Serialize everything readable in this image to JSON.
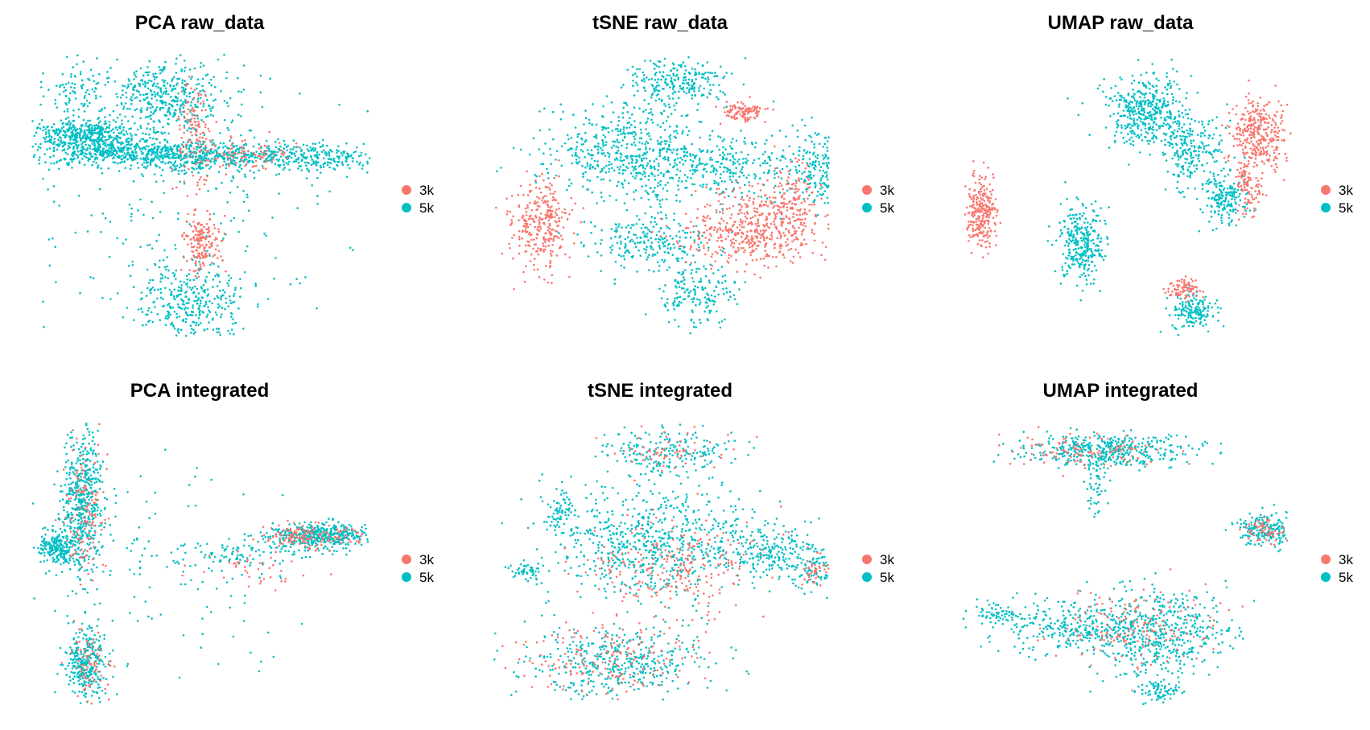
{
  "colors": {
    "3k": "#F8766D",
    "5k": "#00BFC4",
    "background": "#FFFFFF"
  },
  "chart_data": [
    {
      "type": "scatter",
      "title": "PCA raw_data",
      "xlabel": "",
      "ylabel": "",
      "grid": false,
      "legend_position": "right",
      "legend": [
        "3k",
        "5k"
      ],
      "xlim": [
        0,
        100
      ],
      "ylim": [
        0,
        100
      ],
      "clusters": [
        {
          "group": "5k",
          "cx": 12,
          "cy": 88,
          "sx": 4,
          "sy": 6,
          "n": 90
        },
        {
          "group": "5k",
          "cx": 15,
          "cy": 72,
          "sx": 7,
          "sy": 2.5,
          "n": 380
        },
        {
          "group": "5k",
          "cx": 23,
          "cy": 66,
          "sx": 12,
          "sy": 2.5,
          "n": 360
        },
        {
          "group": "5k",
          "cx": 50,
          "cy": 64,
          "sx": 15,
          "sy": 2.5,
          "n": 520
        },
        {
          "group": "5k",
          "cx": 85,
          "cy": 64,
          "sx": 10,
          "sy": 2.5,
          "n": 220
        },
        {
          "group": "5k",
          "cx": 40,
          "cy": 85,
          "sx": 9,
          "sy": 7,
          "n": 420
        },
        {
          "group": "5k",
          "cx": 47,
          "cy": 12,
          "sx": 8,
          "sy": 7,
          "n": 320
        },
        {
          "group": "5k",
          "cx": 45,
          "cy": 45,
          "sx": 25,
          "sy": 25,
          "n": 250
        },
        {
          "group": "3k",
          "cx": 48,
          "cy": 72,
          "sx": 2.5,
          "sy": 9,
          "n": 130
        },
        {
          "group": "3k",
          "cx": 50,
          "cy": 33,
          "sx": 2.5,
          "sy": 5,
          "n": 170
        },
        {
          "group": "3k",
          "cx": 63,
          "cy": 65,
          "sx": 7,
          "sy": 2.5,
          "n": 90
        }
      ]
    },
    {
      "type": "scatter",
      "title": "tSNE raw_data",
      "xlabel": "",
      "ylabel": "",
      "grid": false,
      "legend_position": "right",
      "legend": [
        "3k",
        "5k"
      ],
      "xlim": [
        0,
        100
      ],
      "ylim": [
        0,
        100
      ],
      "clusters": [
        {
          "group": "5k",
          "cx": 55,
          "cy": 90,
          "sx": 7,
          "sy": 4.5,
          "n": 240
        },
        {
          "group": "5k",
          "cx": 42,
          "cy": 66,
          "sx": 13,
          "sy": 9,
          "n": 520
        },
        {
          "group": "5k",
          "cx": 72,
          "cy": 60,
          "sx": 14,
          "sy": 6,
          "n": 300
        },
        {
          "group": "5k",
          "cx": 46,
          "cy": 34,
          "sx": 9,
          "sy": 5,
          "n": 220
        },
        {
          "group": "5k",
          "cx": 60,
          "cy": 16,
          "sx": 6,
          "sy": 7,
          "n": 180
        },
        {
          "group": "5k",
          "cx": 97,
          "cy": 60,
          "sx": 4,
          "sy": 7,
          "n": 160
        },
        {
          "group": "3k",
          "cx": 75,
          "cy": 80,
          "sx": 3,
          "sy": 2,
          "n": 110
        },
        {
          "group": "3k",
          "cx": 15,
          "cy": 40,
          "sx": 4.5,
          "sy": 8.5,
          "n": 300
        },
        {
          "group": "3k",
          "cx": 76,
          "cy": 38,
          "sx": 10,
          "sy": 7,
          "n": 440
        },
        {
          "group": "3k",
          "cx": 89,
          "cy": 48,
          "sx": 3.5,
          "sy": 7,
          "n": 160
        }
      ]
    },
    {
      "type": "scatter",
      "title": "UMAP raw_data",
      "xlabel": "",
      "ylabel": "",
      "grid": false,
      "legend_position": "right",
      "legend": [
        "3k",
        "5k"
      ],
      "xlim": [
        0,
        100
      ],
      "ylim": [
        0,
        100
      ],
      "clusters": [
        {
          "group": "5k",
          "cx": 57,
          "cy": 80,
          "sx": 6,
          "sy": 6,
          "n": 420
        },
        {
          "group": "5k",
          "cx": 70,
          "cy": 66,
          "sx": 5,
          "sy": 6,
          "n": 220
        },
        {
          "group": "5k",
          "cx": 80,
          "cy": 49,
          "sx": 3.5,
          "sy": 4.5,
          "n": 180
        },
        {
          "group": "5k",
          "cx": 38,
          "cy": 33,
          "sx": 3.5,
          "sy": 7,
          "n": 300
        },
        {
          "group": "5k",
          "cx": 71,
          "cy": 9,
          "sx": 4,
          "sy": 3.5,
          "n": 160
        },
        {
          "group": "3k",
          "cx": 90,
          "cy": 72,
          "sx": 4,
          "sy": 6,
          "n": 320
        },
        {
          "group": "3k",
          "cx": 87,
          "cy": 53,
          "sx": 2,
          "sy": 5,
          "n": 100
        },
        {
          "group": "3k",
          "cx": 8,
          "cy": 45,
          "sx": 2,
          "sy": 6,
          "n": 260
        },
        {
          "group": "3k",
          "cx": 68,
          "cy": 17,
          "sx": 2.5,
          "sy": 2,
          "n": 80
        }
      ]
    },
    {
      "type": "scatter",
      "title": "PCA integrated",
      "xlabel": "",
      "ylabel": "",
      "grid": false,
      "legend_position": "right",
      "legend": [
        "3k",
        "5k"
      ],
      "xlim": [
        0,
        100
      ],
      "ylim": [
        0,
        100
      ],
      "clusters": [
        {
          "group": "5k",
          "cx": 15,
          "cy": 72,
          "sx": 3,
          "sy": 12,
          "n": 520
        },
        {
          "group": "5k",
          "cx": 7,
          "cy": 55,
          "sx": 3,
          "sy": 3,
          "n": 220
        },
        {
          "group": "5k",
          "cx": 85,
          "cy": 60,
          "sx": 7,
          "sy": 2.2,
          "n": 420
        },
        {
          "group": "5k",
          "cx": 62,
          "cy": 53,
          "sx": 12,
          "sy": 3,
          "n": 110
        },
        {
          "group": "5k",
          "cx": 16,
          "cy": 15,
          "sx": 3,
          "sy": 6,
          "n": 300
        },
        {
          "group": "5k",
          "cx": 40,
          "cy": 45,
          "sx": 22,
          "sy": 22,
          "n": 110
        },
        {
          "group": "3k",
          "cx": 16,
          "cy": 70,
          "sx": 3,
          "sy": 13,
          "n": 130
        },
        {
          "group": "3k",
          "cx": 82,
          "cy": 60,
          "sx": 7,
          "sy": 2.2,
          "n": 140
        },
        {
          "group": "3k",
          "cx": 17,
          "cy": 15,
          "sx": 3,
          "sy": 6,
          "n": 70
        },
        {
          "group": "3k",
          "cx": 65,
          "cy": 48,
          "sx": 8,
          "sy": 3,
          "n": 40
        }
      ]
    },
    {
      "type": "scatter",
      "title": "tSNE integrated",
      "xlabel": "",
      "ylabel": "",
      "grid": false,
      "legend_position": "right",
      "legend": [
        "3k",
        "5k"
      ],
      "xlim": [
        0,
        100
      ],
      "ylim": [
        0,
        100
      ],
      "clusters": [
        {
          "group": "5k",
          "cx": 52,
          "cy": 90,
          "sx": 10,
          "sy": 4,
          "n": 200
        },
        {
          "group": "5k",
          "cx": 48,
          "cy": 58,
          "sx": 14,
          "sy": 10,
          "n": 650
        },
        {
          "group": "5k",
          "cx": 80,
          "cy": 55,
          "sx": 8,
          "sy": 5,
          "n": 220
        },
        {
          "group": "5k",
          "cx": 20,
          "cy": 68,
          "sx": 2,
          "sy": 4,
          "n": 70
        },
        {
          "group": "5k",
          "cx": 10,
          "cy": 47,
          "sx": 3,
          "sy": 2,
          "n": 50
        },
        {
          "group": "5k",
          "cx": 38,
          "cy": 15,
          "sx": 13,
          "sy": 6,
          "n": 420
        },
        {
          "group": "5k",
          "cx": 95,
          "cy": 48,
          "sx": 3,
          "sy": 4,
          "n": 80
        },
        {
          "group": "3k",
          "cx": 55,
          "cy": 50,
          "sx": 13,
          "sy": 9,
          "n": 240
        },
        {
          "group": "3k",
          "cx": 35,
          "cy": 16,
          "sx": 13,
          "sy": 6,
          "n": 170
        },
        {
          "group": "3k",
          "cx": 52,
          "cy": 90,
          "sx": 10,
          "sy": 4,
          "n": 60
        },
        {
          "group": "3k",
          "cx": 96,
          "cy": 47,
          "sx": 2,
          "sy": 3,
          "n": 40
        }
      ]
    },
    {
      "type": "scatter",
      "title": "UMAP integrated",
      "xlabel": "",
      "ylabel": "",
      "grid": false,
      "legend_position": "right",
      "legend": [
        "3k",
        "5k"
      ],
      "xlim": [
        0,
        100
      ],
      "ylim": [
        0,
        100
      ],
      "clusters": [
        {
          "group": "5k",
          "cx": 45,
          "cy": 90,
          "sx": 12,
          "sy": 3,
          "n": 420
        },
        {
          "group": "5k",
          "cx": 42,
          "cy": 78,
          "sx": 2,
          "sy": 5,
          "n": 50
        },
        {
          "group": "5k",
          "cx": 92,
          "cy": 62,
          "sx": 4,
          "sy": 3,
          "n": 190
        },
        {
          "group": "5k",
          "cx": 37,
          "cy": 28,
          "sx": 12,
          "sy": 5,
          "n": 320
        },
        {
          "group": "5k",
          "cx": 62,
          "cy": 24,
          "sx": 10,
          "sy": 8,
          "n": 480
        },
        {
          "group": "5k",
          "cx": 60,
          "cy": 5,
          "sx": 3,
          "sy": 2,
          "n": 70
        },
        {
          "group": "5k",
          "cx": 12,
          "cy": 32,
          "sx": 4,
          "sy": 2,
          "n": 60
        },
        {
          "group": "3k",
          "cx": 40,
          "cy": 90,
          "sx": 12,
          "sy": 3,
          "n": 110
        },
        {
          "group": "3k",
          "cx": 92,
          "cy": 62,
          "sx": 3,
          "sy": 2,
          "n": 60
        },
        {
          "group": "3k",
          "cx": 55,
          "cy": 28,
          "sx": 12,
          "sy": 7,
          "n": 160
        }
      ]
    }
  ]
}
